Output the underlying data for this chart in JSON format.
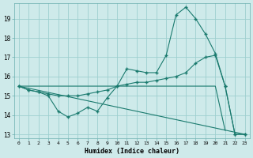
{
  "xlabel": "Humidex (Indice chaleur)",
  "bg_color": "#ceeaea",
  "grid_color": "#9dcfcf",
  "line_color": "#1a7a6e",
  "xlim": [
    -0.5,
    23.5
  ],
  "ylim": [
    12.8,
    19.8
  ],
  "xticks": [
    0,
    1,
    2,
    3,
    4,
    5,
    6,
    7,
    8,
    9,
    10,
    11,
    12,
    13,
    14,
    15,
    16,
    17,
    18,
    19,
    20,
    21,
    22,
    23
  ],
  "yticks": [
    13,
    14,
    15,
    16,
    17,
    18,
    19
  ],
  "series1_x": [
    0,
    1,
    2,
    3,
    4,
    5,
    6,
    7,
    8,
    9,
    10,
    11,
    12,
    13,
    14,
    15,
    16,
    17,
    18,
    19,
    20,
    21,
    22,
    23
  ],
  "series1_y": [
    15.5,
    15.3,
    15.2,
    15.0,
    14.2,
    13.9,
    14.1,
    14.4,
    14.2,
    14.9,
    15.5,
    16.4,
    16.3,
    16.2,
    16.2,
    17.1,
    19.2,
    19.6,
    19.0,
    18.2,
    17.2,
    15.5,
    13.0,
    13.0
  ],
  "series2_x": [
    0,
    1,
    2,
    3,
    4,
    5,
    6,
    7,
    8,
    9,
    10,
    11,
    12,
    13,
    14,
    15,
    16,
    17,
    18,
    19,
    20,
    21,
    22,
    23
  ],
  "series2_y": [
    15.5,
    15.3,
    15.2,
    15.1,
    15.0,
    15.0,
    15.0,
    15.1,
    15.2,
    15.3,
    15.5,
    15.6,
    15.7,
    15.7,
    15.8,
    15.9,
    16.0,
    16.2,
    16.7,
    17.0,
    17.1,
    15.5,
    13.0,
    13.0
  ],
  "series3_x": [
    0,
    23
  ],
  "series3_y": [
    15.5,
    13.0
  ],
  "series4_x": [
    0,
    20,
    21
  ],
  "series4_y": [
    15.5,
    15.5,
    13.2
  ]
}
